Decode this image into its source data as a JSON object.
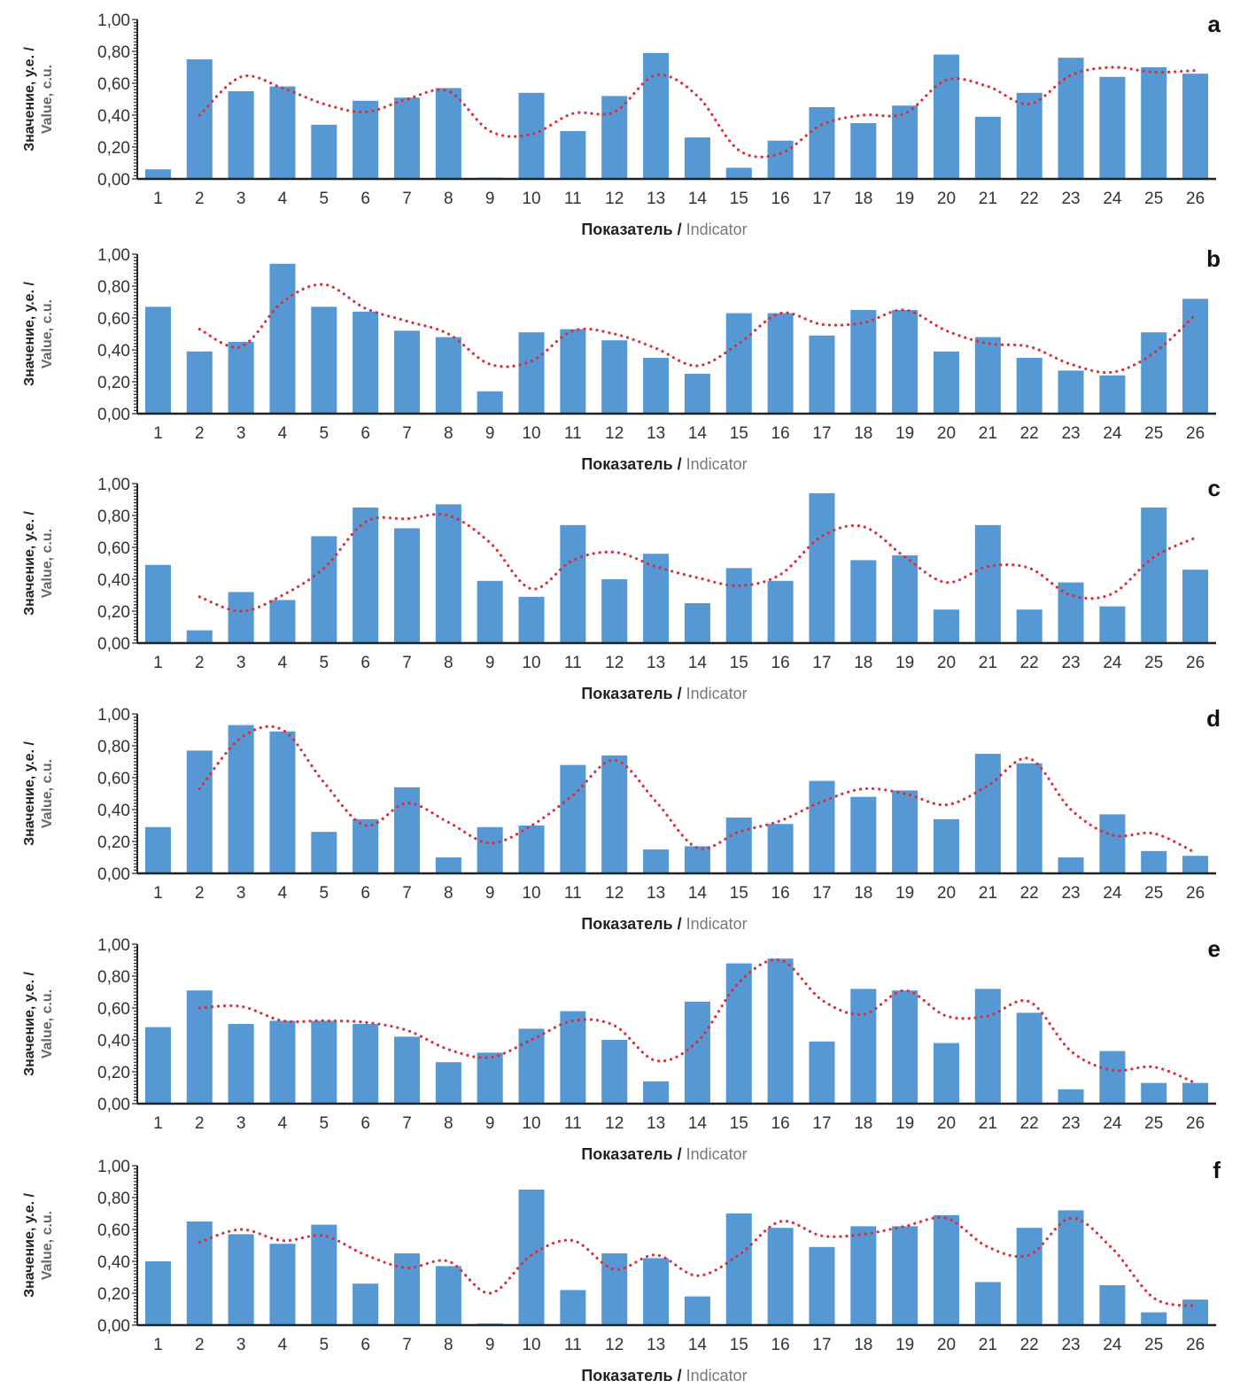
{
  "figure": {
    "panel_count": 6,
    "colors": {
      "bar": "#5598d3",
      "trend": "#d9303a",
      "axis": "#222222",
      "text": "#333333"
    }
  },
  "chart_data": [
    {
      "type": "bar",
      "panel_label": "a",
      "ylabel_ru": "Значение, у.е. /",
      "ylabel_en": "Value, c.u.",
      "xlabel_ru": "Показатель",
      "xlabel_sep": " / ",
      "xlabel_en": "Indicator",
      "ylim": [
        0,
        1
      ],
      "yticks": [
        "0,00",
        "0,20",
        "0,40",
        "0,60",
        "0,80",
        "1,00"
      ],
      "categories": [
        "1",
        "2",
        "3",
        "4",
        "5",
        "6",
        "7",
        "8",
        "9",
        "10",
        "11",
        "12",
        "13",
        "14",
        "15",
        "16",
        "17",
        "18",
        "19",
        "20",
        "21",
        "22",
        "23",
        "24",
        "25",
        "26"
      ],
      "series": [
        {
          "name": "values",
          "kind": "bar",
          "values": [
            0.06,
            0.75,
            0.55,
            0.58,
            0.34,
            0.49,
            0.51,
            0.57,
            0.0,
            0.54,
            0.3,
            0.52,
            0.79,
            0.26,
            0.07,
            0.24,
            0.45,
            0.35,
            0.46,
            0.78,
            0.39,
            0.54,
            0.76,
            0.64,
            0.7,
            0.66
          ]
        },
        {
          "name": "moving average (2 per.)",
          "kind": "dotted-line",
          "start_index": 1,
          "values": [
            0.4,
            0.64,
            0.57,
            0.47,
            0.42,
            0.5,
            0.55,
            0.3,
            0.28,
            0.41,
            0.42,
            0.65,
            0.52,
            0.18,
            0.16,
            0.34,
            0.4,
            0.41,
            0.62,
            0.58,
            0.47,
            0.65,
            0.7,
            0.67,
            0.68
          ]
        }
      ]
    },
    {
      "type": "bar",
      "panel_label": "b",
      "ylabel_ru": "Значение, у.е. /",
      "ylabel_en": "Value, c.u.",
      "xlabel_ru": "Показатель",
      "xlabel_sep": " / ",
      "xlabel_en": "Indicator",
      "ylim": [
        0,
        1
      ],
      "yticks": [
        "0,00",
        "0,20",
        "0,40",
        "0,60",
        "0,80",
        "1,00"
      ],
      "categories": [
        "1",
        "2",
        "3",
        "4",
        "5",
        "6",
        "7",
        "8",
        "9",
        "10",
        "11",
        "12",
        "13",
        "14",
        "15",
        "16",
        "17",
        "18",
        "19",
        "20",
        "21",
        "22",
        "23",
        "24",
        "25",
        "26"
      ],
      "series": [
        {
          "name": "values",
          "kind": "bar",
          "values": [
            0.67,
            0.39,
            0.45,
            0.94,
            0.67,
            0.64,
            0.52,
            0.48,
            0.14,
            0.51,
            0.53,
            0.46,
            0.35,
            0.25,
            0.63,
            0.63,
            0.49,
            0.65,
            0.65,
            0.39,
            0.48,
            0.35,
            0.27,
            0.24,
            0.51,
            0.72
          ]
        },
        {
          "name": "moving average (2 per.)",
          "kind": "dotted-line",
          "start_index": 1,
          "values": [
            0.53,
            0.42,
            0.7,
            0.81,
            0.66,
            0.58,
            0.5,
            0.31,
            0.33,
            0.52,
            0.5,
            0.41,
            0.3,
            0.44,
            0.63,
            0.56,
            0.57,
            0.65,
            0.52,
            0.44,
            0.42,
            0.31,
            0.26,
            0.38,
            0.62
          ]
        }
      ]
    },
    {
      "type": "bar",
      "panel_label": "c",
      "ylabel_ru": "Значение, у.е. /",
      "ylabel_en": "Value, c.u.",
      "xlabel_ru": "Показатель",
      "xlabel_sep": " / ",
      "xlabel_en": "Indicator",
      "ylim": [
        0,
        1
      ],
      "yticks": [
        "0,00",
        "0,20",
        "0,40",
        "0,60",
        "0,80",
        "1,00"
      ],
      "categories": [
        "1",
        "2",
        "3",
        "4",
        "5",
        "6",
        "7",
        "8",
        "9",
        "10",
        "11",
        "12",
        "13",
        "14",
        "15",
        "16",
        "17",
        "18",
        "19",
        "20",
        "21",
        "22",
        "23",
        "24",
        "25",
        "26"
      ],
      "series": [
        {
          "name": "values",
          "kind": "bar",
          "values": [
            0.49,
            0.08,
            0.32,
            0.27,
            0.67,
            0.85,
            0.72,
            0.87,
            0.39,
            0.29,
            0.74,
            0.4,
            0.56,
            0.25,
            0.47,
            0.39,
            0.94,
            0.52,
            0.55,
            0.21,
            0.74,
            0.21,
            0.38,
            0.23,
            0.85,
            0.46
          ]
        },
        {
          "name": "moving average (2 per.)",
          "kind": "dotted-line",
          "start_index": 1,
          "values": [
            0.29,
            0.2,
            0.3,
            0.47,
            0.76,
            0.78,
            0.8,
            0.63,
            0.34,
            0.52,
            0.57,
            0.48,
            0.41,
            0.36,
            0.43,
            0.67,
            0.73,
            0.54,
            0.38,
            0.48,
            0.47,
            0.3,
            0.31,
            0.54,
            0.66
          ]
        }
      ]
    },
    {
      "type": "bar",
      "panel_label": "d",
      "ylabel_ru": "Значение, у.е. /",
      "ylabel_en": "Value, c.u.",
      "xlabel_ru": "Показатель",
      "xlabel_sep": " / ",
      "xlabel_en": "Indicator",
      "ylim": [
        0,
        1
      ],
      "yticks": [
        "0,00",
        "0,20",
        "0,40",
        "0,60",
        "0,80",
        "1,00"
      ],
      "categories": [
        "1",
        "2",
        "3",
        "4",
        "5",
        "6",
        "7",
        "8",
        "9",
        "10",
        "11",
        "12",
        "13",
        "14",
        "15",
        "16",
        "17",
        "18",
        "19",
        "20",
        "21",
        "22",
        "23",
        "24",
        "25",
        "26"
      ],
      "series": [
        {
          "name": "values",
          "kind": "bar",
          "values": [
            0.29,
            0.77,
            0.93,
            0.89,
            0.26,
            0.34,
            0.54,
            0.1,
            0.29,
            0.3,
            0.68,
            0.74,
            0.15,
            0.17,
            0.35,
            0.31,
            0.58,
            0.48,
            0.52,
            0.34,
            0.75,
            0.69,
            0.1,
            0.37,
            0.14,
            0.11
          ]
        },
        {
          "name": "moving average (2 per.)",
          "kind": "dotted-line",
          "start_index": 1,
          "values": [
            0.53,
            0.85,
            0.9,
            0.57,
            0.3,
            0.44,
            0.32,
            0.19,
            0.3,
            0.49,
            0.71,
            0.45,
            0.16,
            0.26,
            0.33,
            0.45,
            0.53,
            0.5,
            0.43,
            0.55,
            0.72,
            0.4,
            0.24,
            0.25,
            0.13
          ]
        }
      ]
    },
    {
      "type": "bar",
      "panel_label": "e",
      "ylabel_ru": "Значение, у.е. /",
      "ylabel_en": "Value, c.u.",
      "xlabel_ru": "Показатель",
      "xlabel_sep": " / ",
      "xlabel_en": "Indicator",
      "ylim": [
        0,
        1
      ],
      "yticks": [
        "0,00",
        "0,20",
        "0,40",
        "0,60",
        "0,80",
        "1,00"
      ],
      "categories": [
        "1",
        "2",
        "3",
        "4",
        "5",
        "6",
        "7",
        "8",
        "9",
        "10",
        "11",
        "12",
        "13",
        "14",
        "15",
        "16",
        "17",
        "18",
        "19",
        "20",
        "21",
        "22",
        "23",
        "24",
        "25",
        "26"
      ],
      "series": [
        {
          "name": "values",
          "kind": "bar",
          "values": [
            0.48,
            0.71,
            0.5,
            0.52,
            0.52,
            0.5,
            0.42,
            0.26,
            0.32,
            0.47,
            0.58,
            0.4,
            0.14,
            0.64,
            0.88,
            0.91,
            0.39,
            0.72,
            0.71,
            0.38,
            0.72,
            0.57,
            0.09,
            0.33,
            0.13,
            0.13
          ]
        },
        {
          "name": "moving average (2 per.)",
          "kind": "dotted-line",
          "start_index": 1,
          "values": [
            0.6,
            0.61,
            0.52,
            0.52,
            0.51,
            0.46,
            0.34,
            0.29,
            0.4,
            0.52,
            0.49,
            0.27,
            0.39,
            0.76,
            0.9,
            0.65,
            0.56,
            0.71,
            0.55,
            0.55,
            0.64,
            0.33,
            0.21,
            0.23,
            0.13
          ]
        }
      ]
    },
    {
      "type": "bar",
      "panel_label": "f",
      "ylabel_ru": "Значение, у.е. /",
      "ylabel_en": "Value, c.u.",
      "xlabel_ru": "Показатель",
      "xlabel_sep": " / ",
      "xlabel_en": "Indicator",
      "ylim": [
        0,
        1
      ],
      "yticks": [
        "0,00",
        "0,20",
        "0,40",
        "0,60",
        "0,80",
        "1,00"
      ],
      "categories": [
        "1",
        "2",
        "3",
        "4",
        "5",
        "6",
        "7",
        "8",
        "9",
        "10",
        "11",
        "12",
        "13",
        "14",
        "15",
        "16",
        "17",
        "18",
        "19",
        "20",
        "21",
        "22",
        "23",
        "24",
        "25",
        "26"
      ],
      "series": [
        {
          "name": "values",
          "kind": "bar",
          "values": [
            0.4,
            0.65,
            0.57,
            0.51,
            0.63,
            0.26,
            0.45,
            0.37,
            0.01,
            0.85,
            0.22,
            0.45,
            0.42,
            0.18,
            0.7,
            0.61,
            0.49,
            0.62,
            0.62,
            0.69,
            0.27,
            0.61,
            0.72,
            0.25,
            0.08,
            0.16
          ]
        },
        {
          "name": "moving average (2 per.)",
          "kind": "dotted-line",
          "start_index": 1,
          "values": [
            0.52,
            0.6,
            0.53,
            0.56,
            0.44,
            0.36,
            0.4,
            0.2,
            0.44,
            0.53,
            0.35,
            0.44,
            0.31,
            0.44,
            0.65,
            0.56,
            0.57,
            0.62,
            0.67,
            0.49,
            0.44,
            0.67,
            0.48,
            0.17,
            0.12
          ]
        }
      ]
    }
  ]
}
